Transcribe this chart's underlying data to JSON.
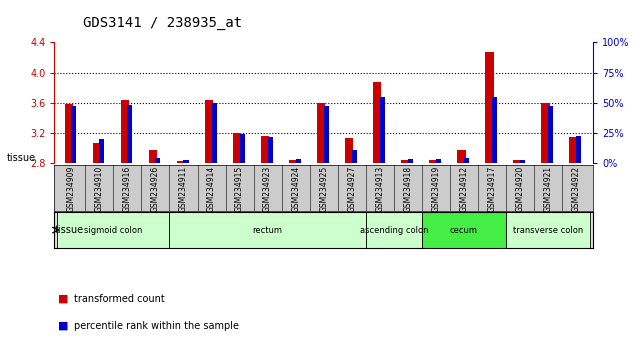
{
  "title": "GDS3141 / 238935_at",
  "samples": [
    "GSM234909",
    "GSM234910",
    "GSM234916",
    "GSM234926",
    "GSM234911",
    "GSM234914",
    "GSM234915",
    "GSM234923",
    "GSM234924",
    "GSM234925",
    "GSM234927",
    "GSM234913",
    "GSM234918",
    "GSM234919",
    "GSM234912",
    "GSM234917",
    "GSM234920",
    "GSM234921",
    "GSM234922"
  ],
  "red_values": [
    3.58,
    3.06,
    3.64,
    2.97,
    2.82,
    3.63,
    3.2,
    3.16,
    2.84,
    3.59,
    3.13,
    3.88,
    2.84,
    2.84,
    2.97,
    4.28,
    2.84,
    3.6,
    3.14
  ],
  "blue_values": [
    3.56,
    3.12,
    3.57,
    2.86,
    2.84,
    3.6,
    3.19,
    3.15,
    2.85,
    3.55,
    2.97,
    3.67,
    2.85,
    2.85,
    2.86,
    3.67,
    2.84,
    3.56,
    3.16
  ],
  "y_min": 2.8,
  "y_max": 4.4,
  "y_ticks_red": [
    2.8,
    3.2,
    3.6,
    4.0,
    4.4
  ],
  "y_ticks_blue_pct": [
    0,
    25,
    50,
    75,
    100
  ],
  "grid_lines": [
    3.2,
    3.6,
    4.0
  ],
  "tissue_groups": [
    {
      "label": "sigmoid colon",
      "start": 0,
      "end": 4,
      "color": "#ccffcc"
    },
    {
      "label": "rectum",
      "start": 4,
      "end": 11,
      "color": "#ccffcc"
    },
    {
      "label": "ascending colon",
      "start": 11,
      "end": 13,
      "color": "#ccffcc"
    },
    {
      "label": "cecum",
      "start": 13,
      "end": 16,
      "color": "#44ee44"
    },
    {
      "label": "transverse colon",
      "start": 16,
      "end": 19,
      "color": "#ccffcc"
    }
  ],
  "title_fontsize": 10,
  "tick_fontsize": 7,
  "sample_fontsize": 5.5,
  "legend_red_label": "transformed count",
  "legend_blue_label": "percentile rank within the sample",
  "tissue_label": "tissue",
  "red_color": "#cc0000",
  "blue_color": "#0000cc",
  "xticklabel_bg": "#cccccc",
  "plot_bg": "#ffffff"
}
